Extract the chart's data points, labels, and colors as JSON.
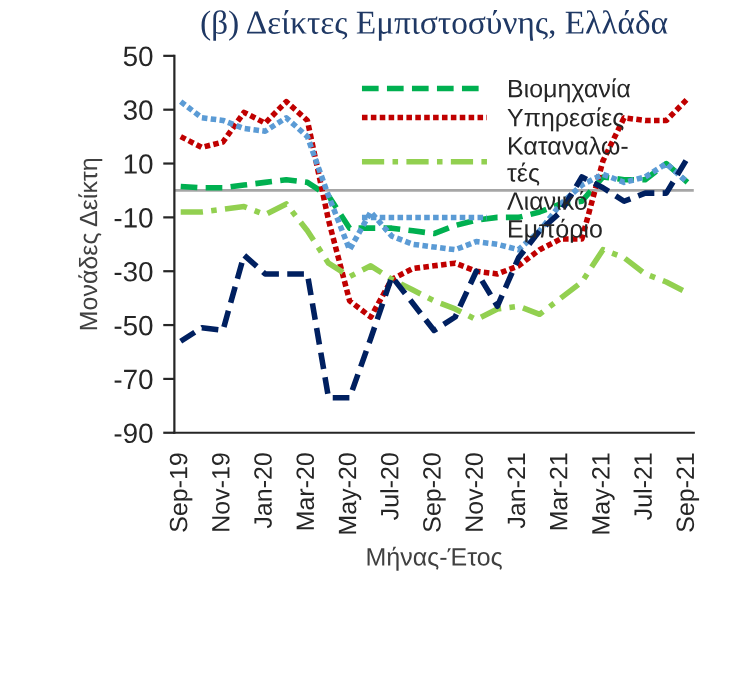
{
  "chart_data": {
    "type": "line",
    "title": "(β) Δείκτες Εμπιστοσύνης, Ελλάδα",
    "xlabel": "Μήνας-Έτος",
    "ylabel": "Μονάδες Δείκτη",
    "categories": [
      "Sep-19",
      null,
      "Nov-19",
      null,
      "Jan-20",
      null,
      "Mar-20",
      null,
      "May-20",
      null,
      "Jul-20",
      null,
      "Sep-20",
      null,
      "Nov-20",
      null,
      "Jan-21",
      null,
      "Mar-21",
      null,
      "May-21",
      null,
      "Jul-21",
      null,
      "Sep-21"
    ],
    "ylim": [
      -90,
      50
    ],
    "yticks": [
      -90,
      -70,
      -50,
      -30,
      -10,
      10,
      30,
      50
    ],
    "grid": false,
    "legend": "top",
    "marker": "none",
    "ref_lines": [
      {
        "axis": "y",
        "value": 0,
        "color": "#a6a6a6",
        "line_style": "solid"
      }
    ],
    "series": [
      {
        "name": "Βιομηχανία",
        "color": "#00b050",
        "line_style": "dashed",
        "values": [
          1.5,
          1,
          1,
          2,
          3,
          4,
          3,
          -2,
          -14,
          -14,
          -14,
          -15,
          -16,
          -13,
          -11,
          -10,
          -10,
          -8,
          -5,
          -4,
          5,
          4,
          4,
          10,
          3
        ]
      },
      {
        "name": "Υπηρεσίες",
        "color": "#c00000",
        "line_style": "dotted",
        "values": [
          20,
          16,
          18,
          29,
          25,
          33,
          26,
          -11,
          -41,
          -47,
          -33,
          -29,
          -28,
          -27,
          -30,
          -31,
          -28,
          -22,
          -18,
          -18,
          11,
          27,
          26,
          26,
          34
        ]
      },
      {
        "name": "Καταναλω-\nτές",
        "color": "#92d050",
        "line_style": "dashdot",
        "values": [
          -8,
          -8,
          -7,
          -6,
          -9,
          -5,
          -15,
          -27,
          -32,
          -28,
          -33,
          -37,
          -41,
          -44,
          -48,
          -44,
          -43,
          -46,
          -40,
          -34,
          -22,
          -25,
          -31,
          -34,
          -38
        ]
      },
      {
        "name": "Λιανικό\nΕμπόριο",
        "color": "#5b9bd5",
        "line_style": "dotted",
        "values": [
          33,
          27,
          26,
          23,
          22,
          27,
          20,
          -2,
          -22,
          -8,
          -17,
          -20,
          -21,
          -22,
          -19,
          -20,
          -22,
          -15,
          -5,
          2,
          6,
          3,
          5,
          10,
          3
        ]
      },
      {
        "color": "#002060",
        "line_style": "dashed",
        "values": [
          -56,
          -51,
          -52,
          -24,
          -31,
          -31,
          -31,
          -77,
          -77,
          -55,
          -32,
          -42,
          -52,
          -47,
          -30,
          -43,
          -25,
          -15,
          -8,
          5,
          1,
          -4,
          -1,
          -1,
          12
        ]
      }
    ]
  }
}
